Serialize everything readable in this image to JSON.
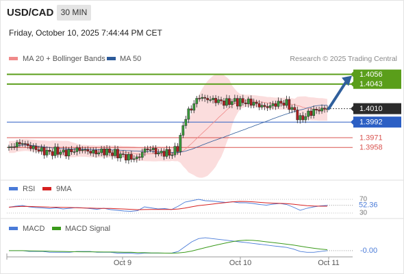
{
  "header": {
    "symbol": "USD/CAD",
    "timeframe": "30 MIN",
    "datetime": "Friday, October 10, 2025 7:44:44 PM CET"
  },
  "attribution": "Research © 2025 Trading Central",
  "legend": {
    "ma20": {
      "label": "MA 20 + Bollinger Bands",
      "color": "#f08a8a"
    },
    "ma50": {
      "label": "MA 50",
      "color": "#2c5a99"
    }
  },
  "chart_data": [
    {
      "type": "candlestick",
      "title": "USD/CAD",
      "x_tick_labels": [
        "Oct 9",
        "Oct 10",
        "Oct 11"
      ],
      "ylim": [
        1.3915,
        1.4085
      ],
      "price_scale_ticks": [
        1.4056,
        1.4043,
        1.401,
        1.3992,
        1.3971,
        1.3958
      ],
      "levels": [
        {
          "label": "1.4056",
          "value": 1.4056,
          "color": "#5a9e1a",
          "kind": "target"
        },
        {
          "label": "1.4043",
          "value": 1.4043,
          "color": "#5a9e1a",
          "kind": "target"
        },
        {
          "label": "1.4010",
          "value": 1.401,
          "color": "#333333",
          "kind": "last_price"
        },
        {
          "label": "1.3992",
          "value": 1.3992,
          "color": "#2c5fc4",
          "kind": "pivot"
        },
        {
          "label": "1.3971",
          "value": 1.3971,
          "color": "#d9534f",
          "kind": "support"
        },
        {
          "label": "1.3958",
          "value": 1.3958,
          "color": "#d9534f",
          "kind": "support"
        }
      ],
      "series": [
        {
          "name": "MA 20 + Bollinger Bands",
          "color": "#f08a8a"
        },
        {
          "name": "MA 50",
          "color": "#2c5a99"
        }
      ],
      "close_path": [
        1.3956,
        1.3962,
        1.3964,
        1.3959,
        1.3956,
        1.3953,
        1.3951,
        1.3953,
        1.3951,
        1.3952,
        1.3955,
        1.3955,
        1.3952,
        1.3951,
        1.3953,
        1.3951,
        1.3949,
        1.3946,
        1.3944,
        1.3943,
        1.3955,
        1.3956,
        1.395,
        1.3951,
        1.3949,
        1.3959,
        1.3998,
        1.4012,
        1.4026,
        1.4023,
        1.4022,
        1.402,
        1.4018,
        1.402,
        1.4019,
        1.4019,
        1.4018,
        1.4014,
        1.4012,
        1.4015,
        1.4018,
        1.4017,
        1.4008,
        1.3995,
        1.4002,
        1.4007,
        1.4009,
        1.401
      ],
      "forecast_arrow": {
        "from": 1.401,
        "to": 1.4056
      }
    },
    {
      "type": "line",
      "title": "RSI",
      "series": [
        {
          "name": "RSI",
          "color": "#4a7bd8",
          "last_value": 52.36
        },
        {
          "name": "9MA",
          "color": "#d62020"
        }
      ],
      "y_ticks": [
        70,
        30
      ],
      "last_value_label": "52.36",
      "values": [
        47,
        50,
        52,
        48,
        46,
        45,
        43,
        45,
        42,
        44,
        46,
        45,
        43,
        41,
        44,
        40,
        38,
        36,
        35,
        37,
        48,
        45,
        42,
        43,
        40,
        50,
        62,
        66,
        70,
        66,
        65,
        63,
        61,
        63,
        60,
        60,
        58,
        55,
        53,
        56,
        58,
        55,
        47,
        38,
        44,
        48,
        51,
        52.36
      ]
    },
    {
      "type": "line",
      "title": "MACD",
      "series": [
        {
          "name": "MACD",
          "color": "#4a7bd8"
        },
        {
          "name": "MACD Signal",
          "color": "#3a9a1a"
        }
      ],
      "last_value_label": "-0.00",
      "values": [
        0.0,
        0.0,
        0.0,
        -0.0001,
        -0.0001,
        -0.0001,
        -0.0002,
        -0.0002,
        -0.0002,
        -0.0002,
        -0.0001,
        -0.0001,
        -0.0001,
        -0.0002,
        -0.0002,
        -0.0002,
        -0.0003,
        -0.0003,
        -0.0003,
        -0.0004,
        -0.0003,
        -0.0003,
        -0.0003,
        -0.0003,
        -0.0003,
        -0.0001,
        0.0005,
        0.0011,
        0.0015,
        0.0016,
        0.0015,
        0.0014,
        0.0013,
        0.0012,
        0.0011,
        0.001,
        0.0009,
        0.0008,
        0.0007,
        0.0006,
        0.0005,
        0.0004,
        0.0002,
        -0.0001,
        -0.0002,
        -0.0002,
        -0.0001,
        0.0
      ]
    }
  ]
}
